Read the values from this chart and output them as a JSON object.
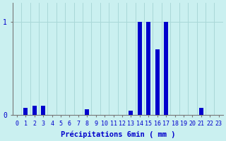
{
  "categories": [
    0,
    1,
    2,
    3,
    4,
    5,
    6,
    7,
    8,
    9,
    10,
    11,
    12,
    13,
    14,
    15,
    16,
    17,
    18,
    19,
    20,
    21,
    22,
    23
  ],
  "values": [
    0,
    0.08,
    0.1,
    0.1,
    0,
    0,
    0,
    0,
    0.06,
    0,
    0,
    0,
    0,
    0.05,
    1.0,
    1.0,
    0.7,
    1.0,
    0,
    0,
    0,
    0.08,
    0,
    0
  ],
  "bar_color": "#0000cc",
  "background_color": "#caf0f0",
  "grid_color": "#aad8d8",
  "axis_color": "#777777",
  "text_color": "#0000cc",
  "xlabel": "Précipitations 6min ( mm )",
  "ylim": [
    0,
    1.2
  ],
  "yticks": [
    0,
    1
  ],
  "xlabel_fontsize": 7.5,
  "tick_fontsize": 7,
  "bar_width": 0.5
}
